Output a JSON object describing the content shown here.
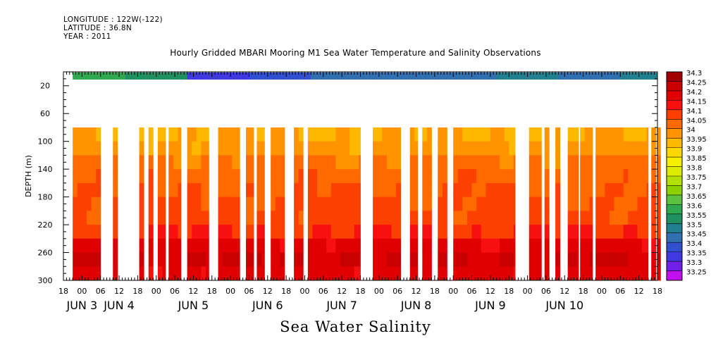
{
  "header": {
    "longitude": "LONGITUDE : 122W(-122)",
    "latitude": "LATITUDE : 36.8N",
    "year": "YEAR : 2011"
  },
  "chart_data": {
    "type": "heatmap",
    "title": "Hourly Gridded MBARI Mooring M1 Sea Water Temperature and Salinity Observations",
    "variable_title": "Sea Water Salinity",
    "ylabel": "DEPTH (m)",
    "y_ticks": [
      20,
      60,
      100,
      140,
      180,
      220,
      260,
      300
    ],
    "ylim": [
      300,
      0
    ],
    "x_range_hours": [
      0,
      192
    ],
    "x_hour_ticks": [
      "18",
      "00",
      "06",
      "12",
      "18",
      "00",
      "06",
      "12",
      "18",
      "00",
      "06",
      "12",
      "18",
      "00",
      "06",
      "12",
      "18",
      "00",
      "06",
      "12",
      "18",
      "00",
      "06",
      "12",
      "18",
      "00",
      "06",
      "12",
      "18",
      "00",
      "06",
      "12",
      "18"
    ],
    "x_day_labels": [
      "JUN  3",
      "JUN  4",
      "JUN  5",
      "JUN  6",
      "JUN  7",
      "JUN  8",
      "JUN  9",
      "JUN  10"
    ],
    "x_day_label_hours": [
      6,
      18,
      42,
      66,
      90,
      114,
      138,
      162
    ],
    "colorbar": {
      "levels": [
        "34.3",
        "34.25",
        "34.2",
        "34.15",
        "34.1",
        "34.05",
        "34",
        "33.95",
        "33.9",
        "33.85",
        "33.8",
        "33.75",
        "33.7",
        "33.65",
        "33.6",
        "33.55",
        "33.5",
        "33.45",
        "33.4",
        "33.35",
        "33.3",
        "33.25"
      ],
      "colors": [
        "#a00000",
        "#c80000",
        "#e00000",
        "#f81010",
        "#fc4000",
        "#ff6a00",
        "#ff9400",
        "#ffb800",
        "#ffd800",
        "#f4f000",
        "#dcec00",
        "#b4e000",
        "#8cd000",
        "#5cc040",
        "#30a850",
        "#209060",
        "#208090",
        "#3070b0",
        "#3050d0",
        "#4038e0",
        "#7020e8",
        "#c010f0"
      ]
    },
    "surface_series": {
      "depth": 5,
      "hours": [
        3,
        12,
        20,
        30,
        40,
        60,
        80,
        100,
        120,
        140,
        160,
        180,
        192
      ],
      "values": [
        33.6,
        33.6,
        33.55,
        33.55,
        33.35,
        33.4,
        33.45,
        33.45,
        33.45,
        33.5,
        33.45,
        33.5,
        33.45
      ]
    },
    "profile": {
      "depths": [
        80,
        100,
        120,
        140,
        160,
        180,
        200,
        220,
        240,
        260,
        280,
        300
      ],
      "base_values": [
        34.0,
        34.02,
        34.06,
        34.08,
        34.1,
        34.11,
        34.12,
        34.15,
        34.22,
        34.25,
        34.22,
        34.18
      ]
    },
    "data_intervals_hours": [
      [
        3,
        12
      ],
      [
        16,
        17.5
      ],
      [
        24.5,
        26
      ],
      [
        27.5,
        29
      ],
      [
        30.5,
        33
      ],
      [
        34,
        38
      ],
      [
        40,
        47
      ],
      [
        50,
        57
      ],
      [
        59,
        61.5
      ],
      [
        62.5,
        65
      ],
      [
        67,
        71.5
      ],
      [
        74.5,
        77.5
      ],
      [
        79,
        96
      ],
      [
        100,
        109
      ],
      [
        112,
        114.5
      ],
      [
        116,
        119
      ],
      [
        121,
        124
      ],
      [
        126,
        146
      ],
      [
        150.5,
        154.5
      ],
      [
        155.5,
        157
      ],
      [
        159,
        160.5
      ],
      [
        163,
        166.5
      ],
      [
        167,
        171
      ],
      [
        172,
        189
      ],
      [
        190,
        191.5
      ],
      [
        192,
        193
      ]
    ]
  }
}
